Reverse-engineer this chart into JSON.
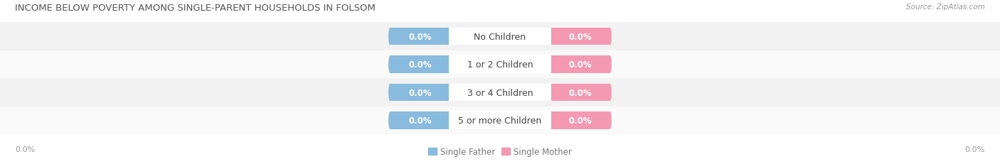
{
  "title": "INCOME BELOW POVERTY AMONG SINGLE-PARENT HOUSEHOLDS IN FOLSOM",
  "source": "Source: ZipAtlas.com",
  "categories": [
    "No Children",
    "1 or 2 Children",
    "3 or 4 Children",
    "5 or more Children"
  ],
  "single_father_values": [
    0.0,
    0.0,
    0.0,
    0.0
  ],
  "single_mother_values": [
    0.0,
    0.0,
    0.0,
    0.0
  ],
  "father_color": "#88BBDD",
  "mother_color": "#F499B2",
  "bar_bg_color": "#E8E8E8",
  "title_fontsize": 9.5,
  "cat_label_fontsize": 9,
  "val_label_fontsize": 8.5,
  "tick_fontsize": 8,
  "source_fontsize": 7.5,
  "legend_fontsize": 8.5,
  "fig_bg_color": "#FFFFFF",
  "row_bg_color_even": "#F2F2F2",
  "row_bg_color_odd": "#FAFAFA"
}
